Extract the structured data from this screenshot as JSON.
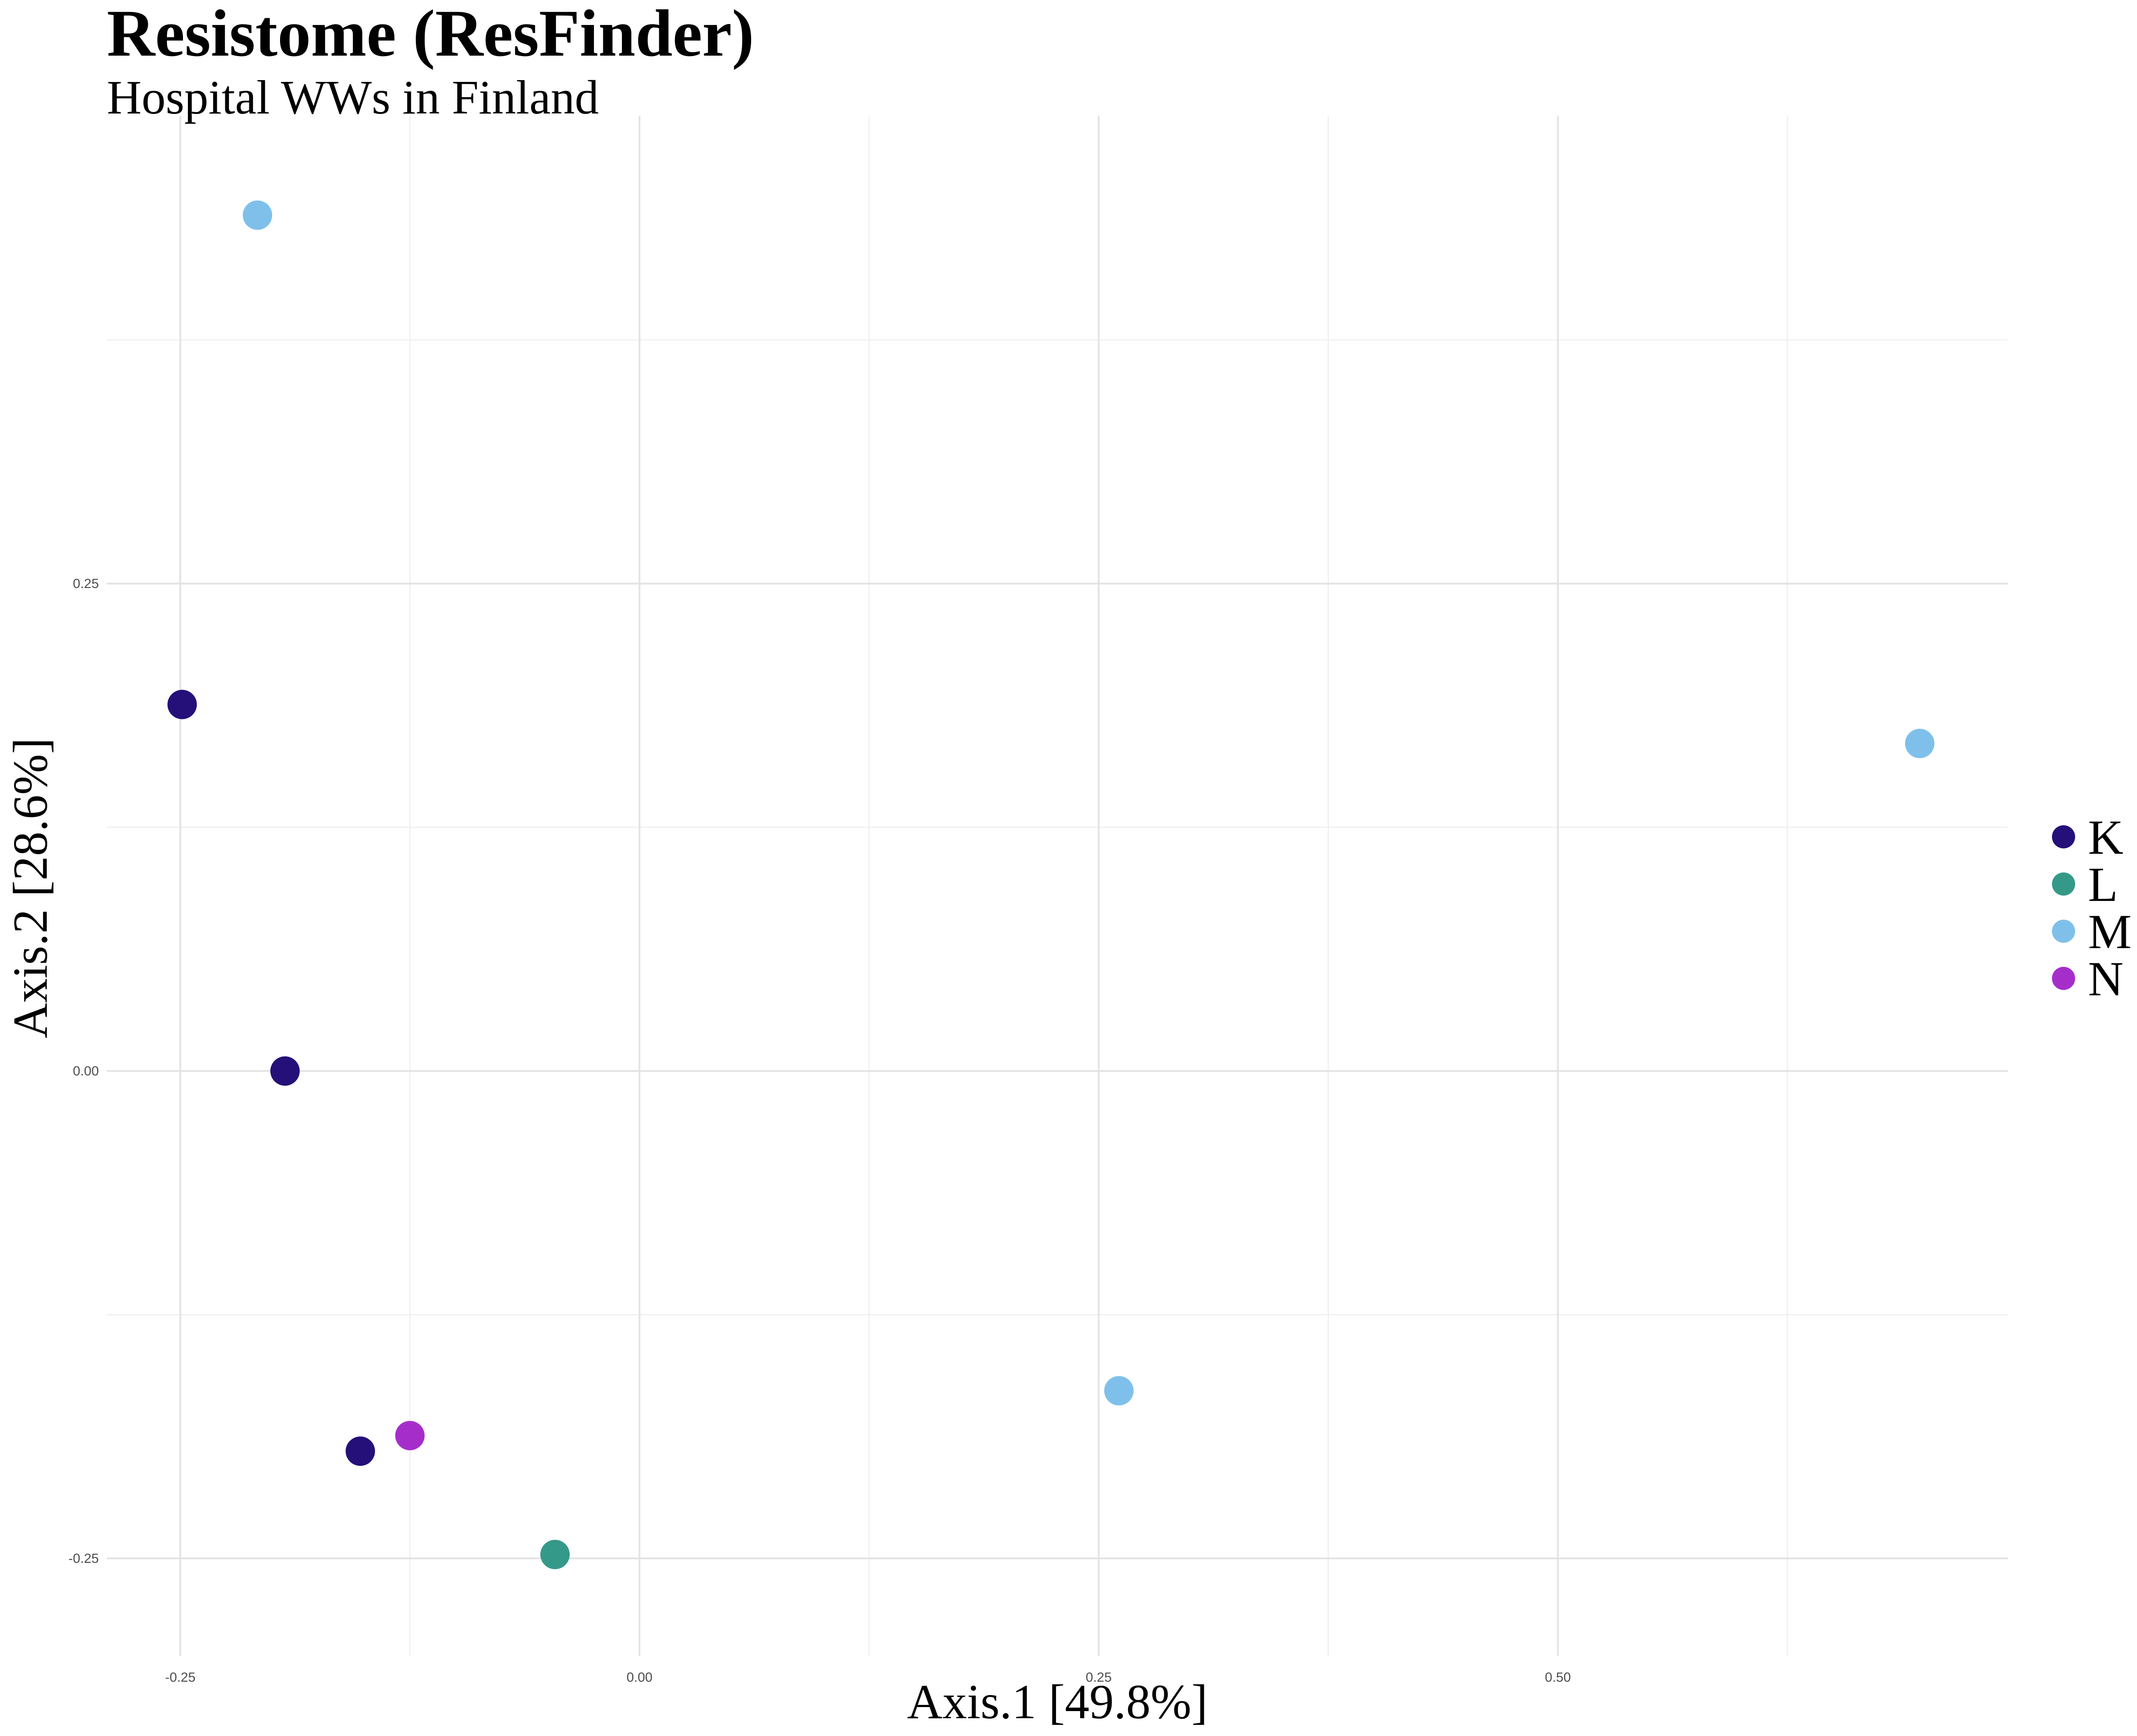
{
  "chart_data": {
    "type": "scatter",
    "title": "Resistome (ResFinder)",
    "subtitle": "Hospital WWs in Finland",
    "xlabel": "Axis.1   [49.8%]",
    "ylabel": "Axis.2   [28.6%]",
    "xlim": [
      -0.29,
      0.745
    ],
    "ylim": [
      -0.3,
      0.49
    ],
    "x_ticks": [
      -0.25,
      0.0,
      0.25,
      0.5
    ],
    "x_tick_labels": [
      "-0.25",
      "0.00",
      "0.25",
      "0.50"
    ],
    "y_ticks": [
      -0.25,
      0.0,
      0.25
    ],
    "y_tick_labels": [
      "-0.25",
      "0.00",
      "0.25"
    ],
    "grid": true,
    "legend_position": "right",
    "series": [
      {
        "name": "K",
        "color": "#25107a",
        "points": [
          [
            -0.249,
            0.188
          ],
          [
            -0.193,
            0.0
          ],
          [
            -0.152,
            -0.195
          ]
        ]
      },
      {
        "name": "L",
        "color": "#35998a",
        "points": [
          [
            -0.046,
            -0.248
          ]
        ]
      },
      {
        "name": "M",
        "color": "#7fc0eb",
        "points": [
          [
            -0.208,
            0.439
          ],
          [
            0.261,
            -0.164
          ],
          [
            0.697,
            0.168
          ]
        ]
      },
      {
        "name": "N",
        "color": "#a52ecb",
        "points": [
          [
            -0.125,
            -0.187
          ]
        ]
      }
    ]
  }
}
